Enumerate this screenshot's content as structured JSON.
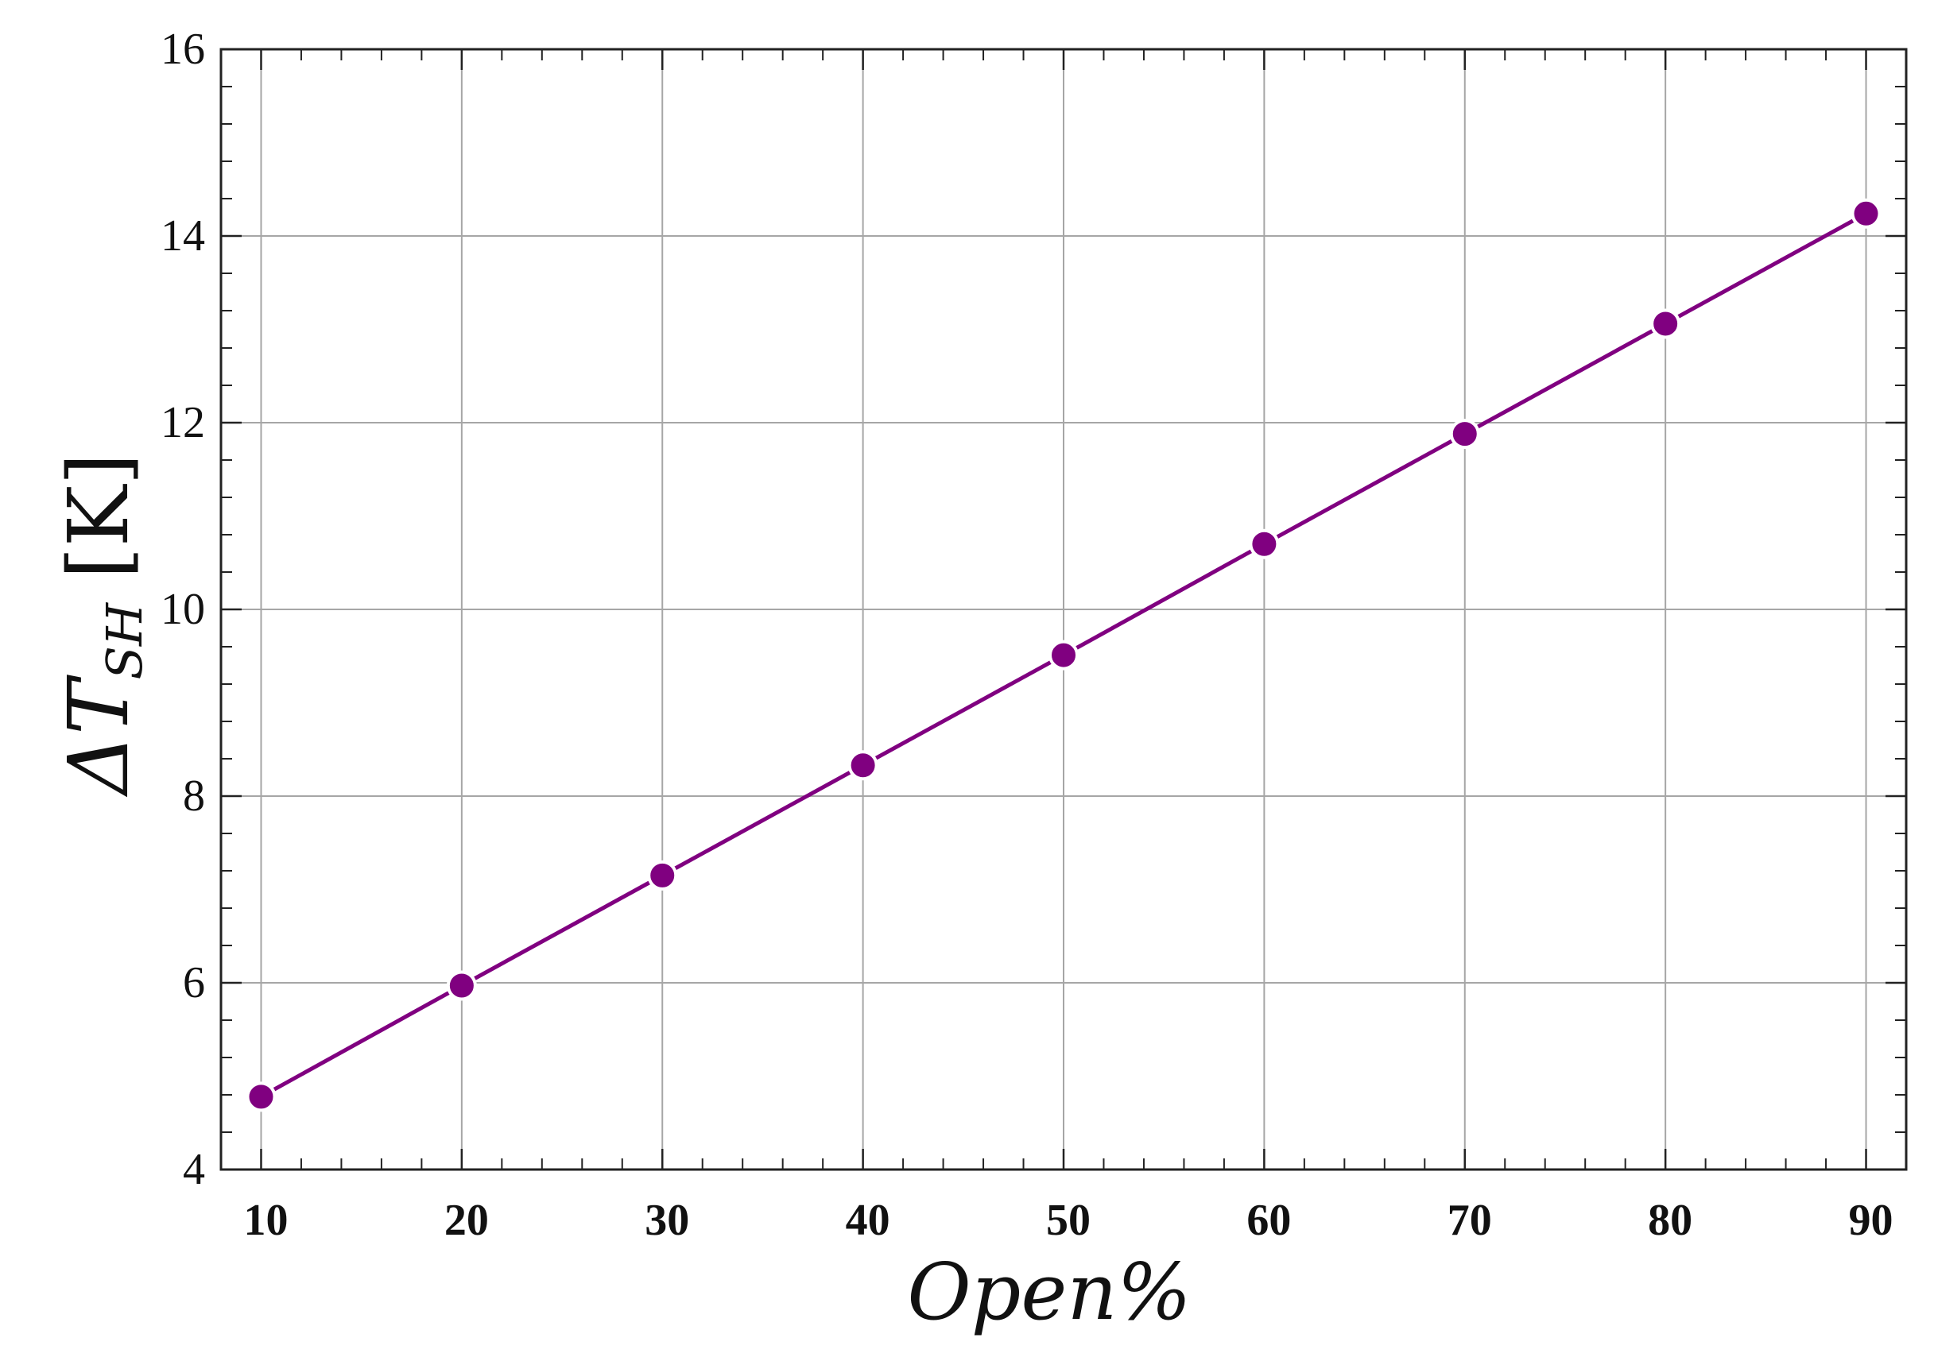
{
  "chart_data": {
    "type": "line",
    "title": "",
    "xlabel": "Open%",
    "ylabel": {
      "prefix": "ΔT",
      "subscript": "SH",
      "unit": "[K]"
    },
    "x": [
      10,
      20,
      30,
      40,
      50,
      60,
      70,
      80,
      90
    ],
    "series": [
      {
        "name": "",
        "values": [
          4.78,
          5.97,
          7.15,
          8.33,
          9.51,
          10.7,
          11.88,
          13.06,
          14.24
        ]
      }
    ],
    "xlim": [
      8,
      92
    ],
    "ylim": [
      4,
      16
    ],
    "xticks": [
      "10",
      "20",
      "30",
      "40",
      "50",
      "60",
      "70",
      "80",
      "90"
    ],
    "yticks": [
      "4",
      "6",
      "8",
      "10",
      "12",
      "14",
      "16"
    ],
    "grid": true,
    "legend": "none",
    "colors": {
      "series": "#800080",
      "grid": "#a6a6a6",
      "frame": "#222222",
      "marker_edge": "#ffffff"
    }
  }
}
